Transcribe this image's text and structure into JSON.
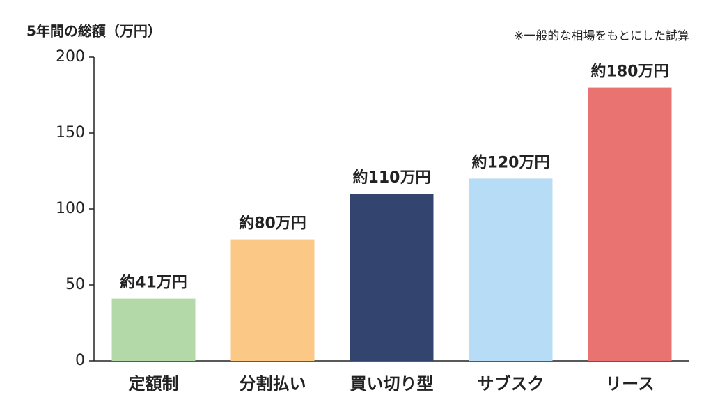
{
  "chart_data": {
    "type": "bar",
    "title": "5年間の総額（万円）",
    "annotation": "※一般的な相場をもとにした試算",
    "categories": [
      "定額制",
      "分割払い",
      "買い切り型",
      "サブスク",
      "リース"
    ],
    "values": [
      41,
      80,
      110,
      120,
      180
    ],
    "value_labels": [
      "約41万円",
      "約80万円",
      "約110万円",
      "約120万円",
      "約180万円"
    ],
    "colors": [
      "#b3d9a8",
      "#fbc985",
      "#33446e",
      "#b7dcf5",
      "#e87370"
    ],
    "ylim": [
      0,
      200
    ],
    "yticks": [
      0,
      50,
      100,
      150,
      200
    ],
    "grid": false
  }
}
